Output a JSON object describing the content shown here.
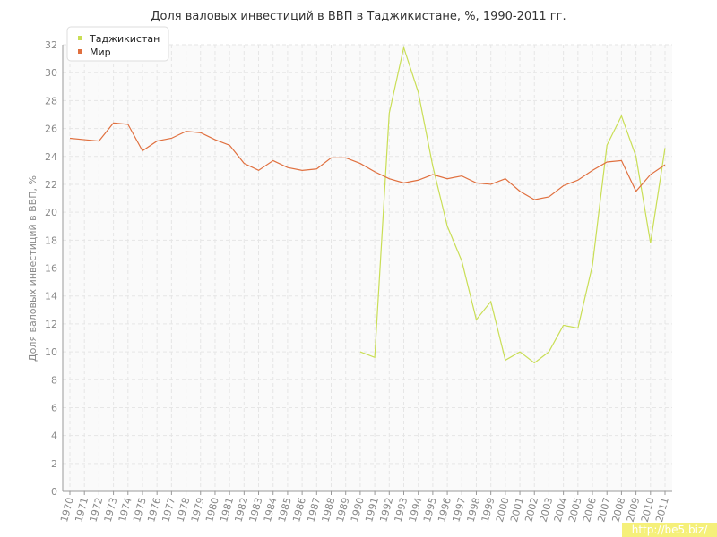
{
  "chart_data": {
    "type": "line",
    "title": "Доля валовых инвестиций в ВВП в Таджикистане, %, 1990-2011 гг.",
    "y_label": "Доля валовых инвестиций в ВВП, %",
    "watermark": "http://be5.biz/",
    "categories": [
      "1970",
      "1971",
      "1972",
      "1973",
      "1974",
      "1975",
      "1976",
      "1977",
      "1978",
      "1979",
      "1980",
      "1981",
      "1982",
      "1983",
      "1984",
      "1985",
      "1986",
      "1987",
      "1988",
      "1989",
      "1990",
      "1991",
      "1992",
      "1993",
      "1994",
      "1995",
      "1996",
      "1997",
      "1998",
      "1999",
      "2000",
      "2001",
      "2002",
      "2003",
      "2004",
      "2005",
      "2006",
      "2007",
      "2008",
      "2009",
      "2010",
      "2011"
    ],
    "series": [
      {
        "name": "Таджикистан",
        "color": "#c9de55",
        "values": [
          null,
          null,
          null,
          null,
          null,
          null,
          null,
          null,
          null,
          null,
          null,
          null,
          null,
          null,
          null,
          null,
          null,
          null,
          null,
          null,
          10.0,
          9.6,
          27.1,
          31.8,
          28.6,
          23.3,
          19.0,
          16.5,
          12.3,
          13.6,
          9.4,
          10.0,
          9.2,
          10.0,
          11.9,
          11.7,
          16.2,
          24.8,
          26.9,
          24.0,
          17.8,
          24.6
        ]
      },
      {
        "name": "Мир",
        "color": "#e0703f",
        "values": [
          25.3,
          25.2,
          25.1,
          26.4,
          26.3,
          24.4,
          25.1,
          25.3,
          25.8,
          25.7,
          25.2,
          24.8,
          23.5,
          23.0,
          23.7,
          23.2,
          23.0,
          23.1,
          23.9,
          23.9,
          23.5,
          22.9,
          22.4,
          22.1,
          22.3,
          22.7,
          22.4,
          22.6,
          22.1,
          22.0,
          22.4,
          21.5,
          20.9,
          21.1,
          21.9,
          22.3,
          23.0,
          23.6,
          23.7,
          21.5,
          22.7,
          23.4
        ]
      }
    ],
    "ylim": [
      0,
      32
    ],
    "yticks": [
      0,
      2,
      4,
      6,
      8,
      10,
      12,
      14,
      16,
      18,
      20,
      22,
      24,
      26,
      28,
      30,
      32
    ],
    "grid": true,
    "legend": "top-left"
  }
}
